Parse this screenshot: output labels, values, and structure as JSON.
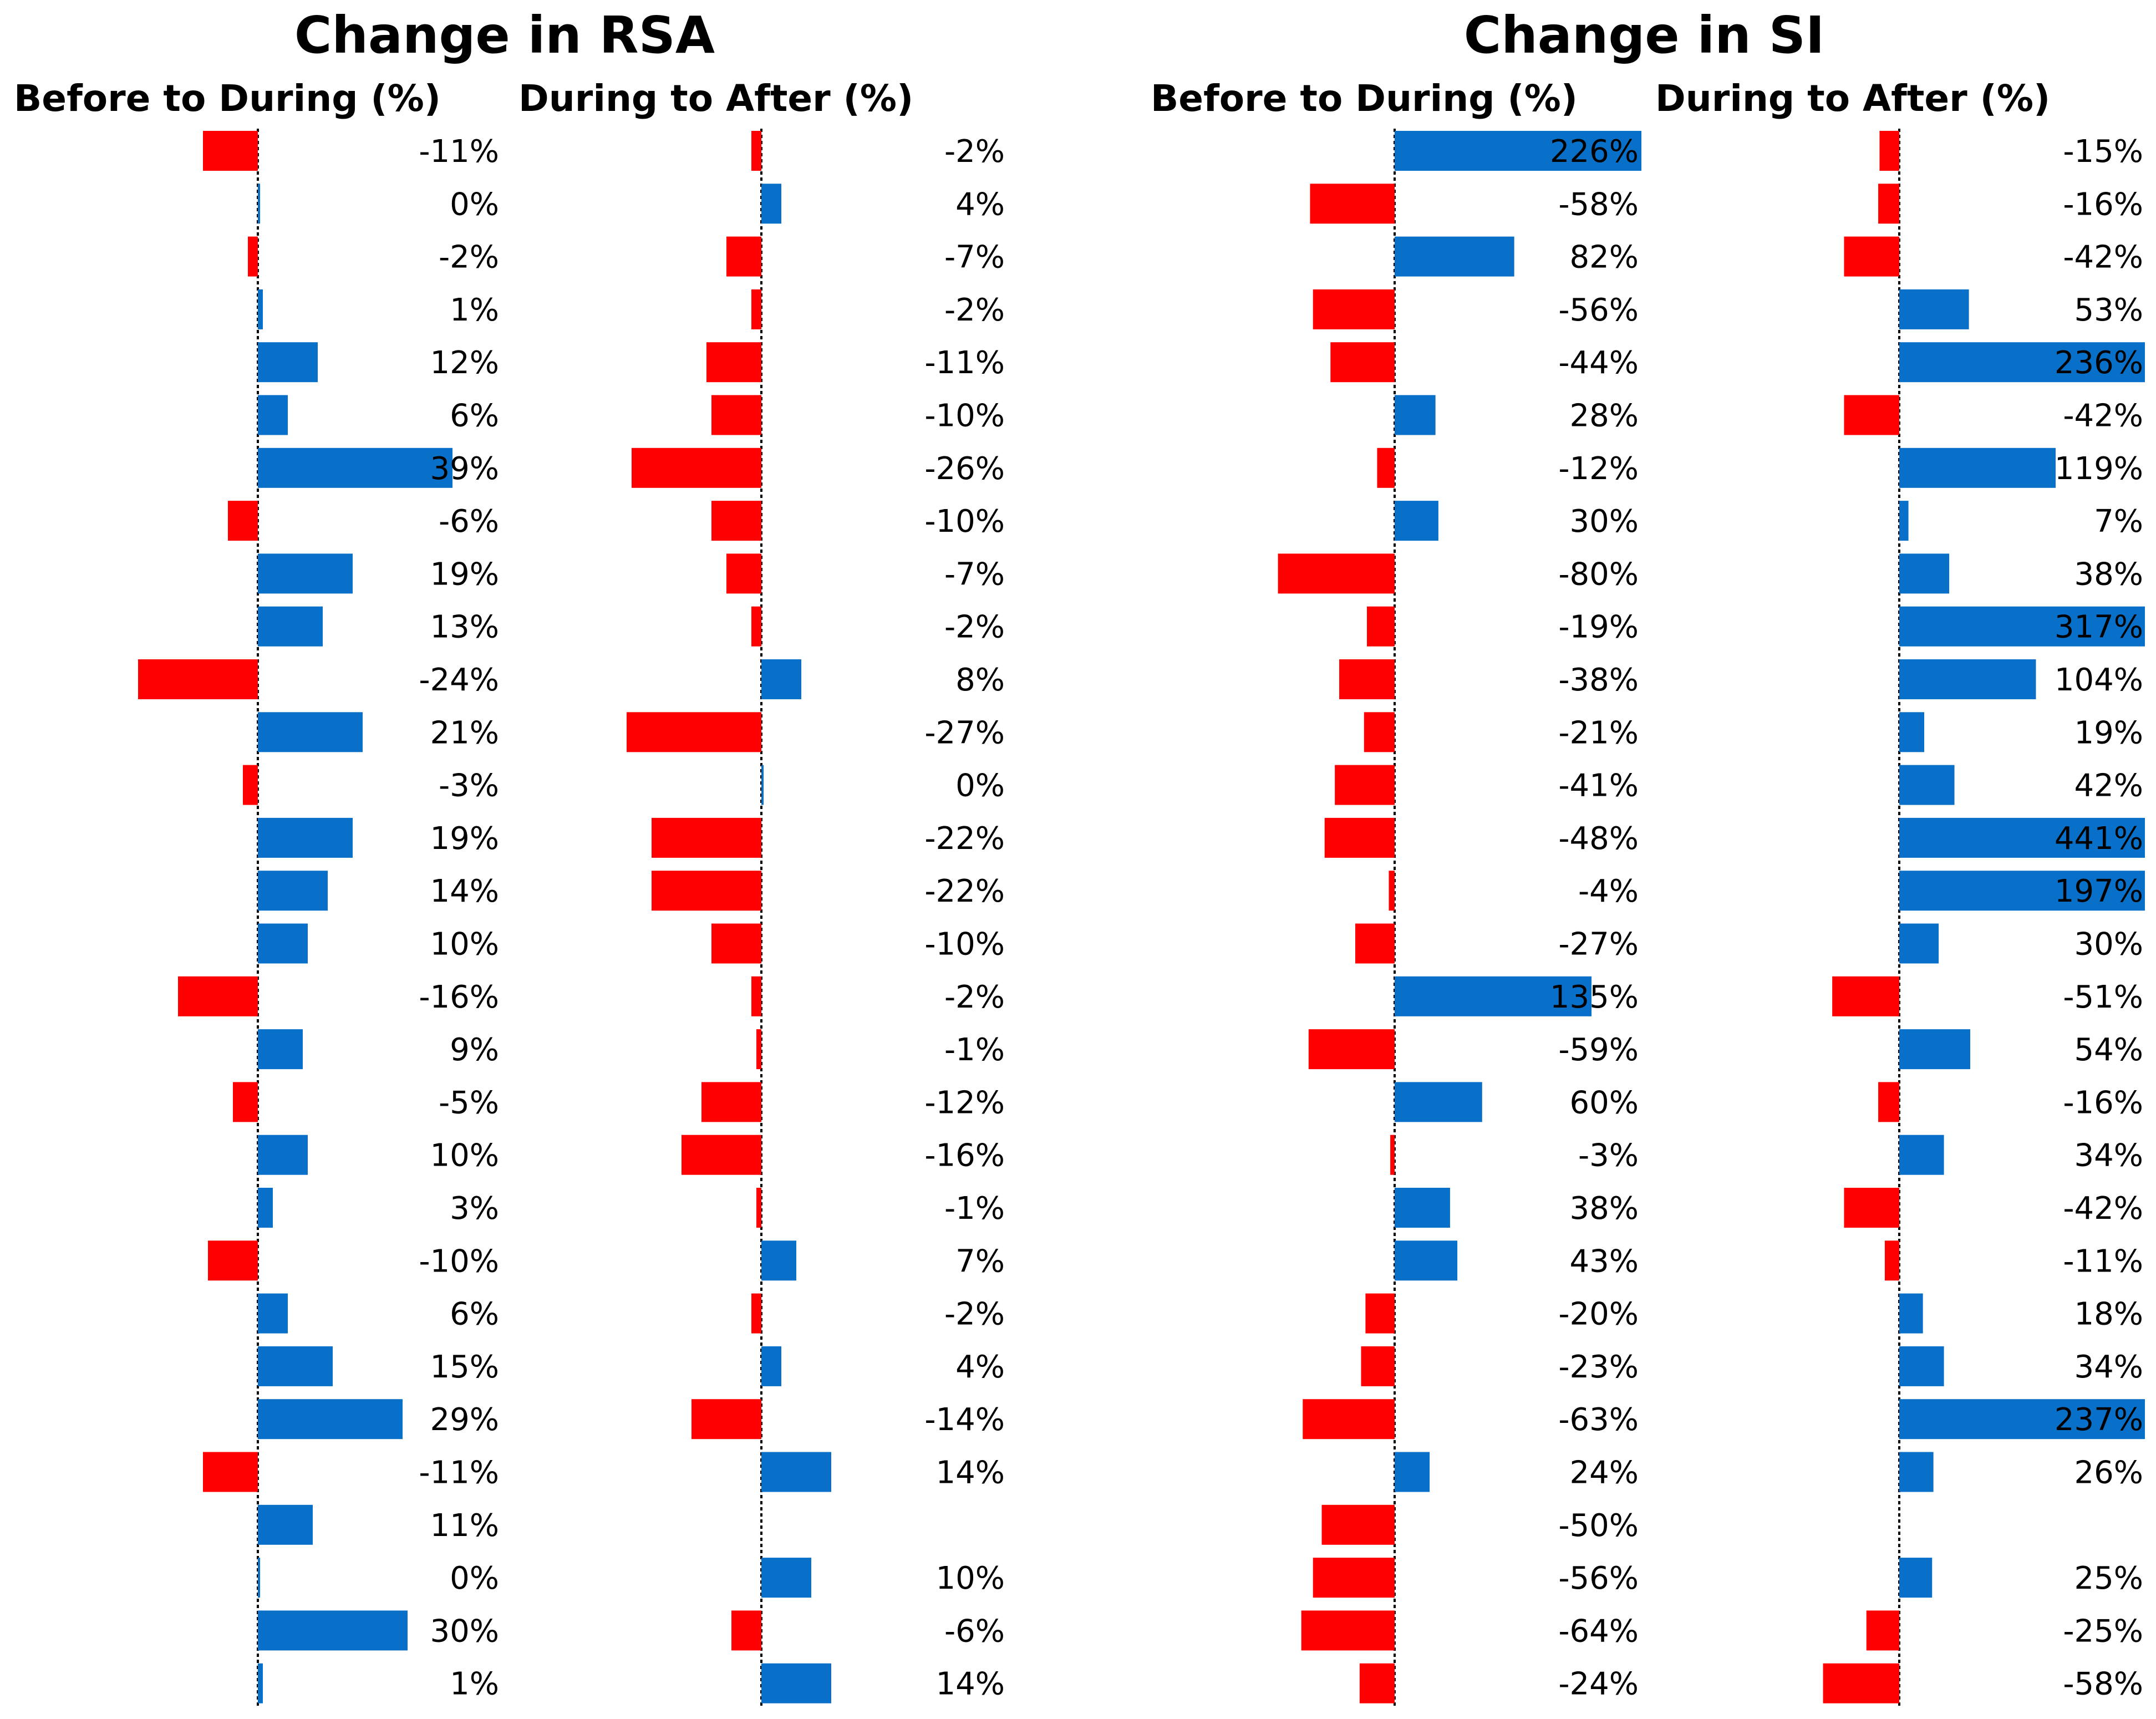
{
  "colors": {
    "positive": "#0870C8",
    "negative": "#FF0000"
  },
  "chart_data": [
    {
      "type": "bar",
      "orientation": "horizontal",
      "title": "Change in RSA",
      "series": [
        {
          "name": "Before to During (%)",
          "values": [
            -11,
            0,
            -2,
            1,
            12,
            6,
            39,
            -6,
            19,
            13,
            -24,
            21,
            -3,
            19,
            14,
            10,
            -16,
            9,
            -5,
            10,
            3,
            -10,
            6,
            15,
            29,
            -11,
            11,
            0,
            30,
            1
          ]
        },
        {
          "name": "During to After (%)",
          "values": [
            -2,
            4,
            -7,
            -2,
            -11,
            -10,
            -26,
            -10,
            -7,
            -2,
            8,
            -27,
            0,
            -22,
            -22,
            -10,
            -2,
            -1,
            -12,
            -16,
            -1,
            7,
            -2,
            4,
            -14,
            14,
            null,
            10,
            -6,
            14
          ]
        }
      ]
    },
    {
      "type": "bar",
      "orientation": "horizontal",
      "title": "Change in SI",
      "series": [
        {
          "name": "Before to During (%)",
          "values": [
            226,
            -58,
            82,
            -56,
            -44,
            28,
            -12,
            30,
            -80,
            -19,
            -38,
            -21,
            -41,
            -48,
            -4,
            -27,
            135,
            -59,
            60,
            -3,
            38,
            43,
            -20,
            -23,
            -63,
            24,
            -50,
            -56,
            -64,
            -24
          ]
        },
        {
          "name": "During to After (%)",
          "values": [
            -15,
            -16,
            -42,
            53,
            236,
            -42,
            119,
            7,
            38,
            317,
            104,
            19,
            42,
            441,
            197,
            30,
            -51,
            54,
            -16,
            34,
            -42,
            -11,
            18,
            34,
            237,
            26,
            null,
            25,
            -25,
            -58
          ]
        }
      ]
    }
  ]
}
